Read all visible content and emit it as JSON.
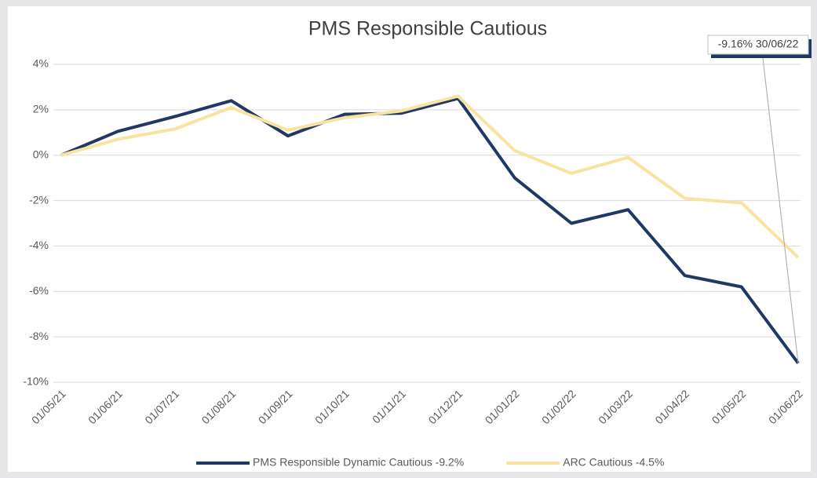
{
  "chart_data": {
    "type": "line",
    "title": "PMS Responsible Cautious",
    "categories": [
      "01/05/21",
      "01/06/21",
      "01/07/21",
      "01/08/21",
      "01/09/21",
      "01/10/21",
      "01/11/21",
      "01/12/21",
      "01/01/22",
      "01/02/22",
      "01/03/22",
      "01/04/22",
      "01/05/22",
      "01/06/22"
    ],
    "series": [
      {
        "name": "PMS Responsible Dynamic Cautious -9.2%",
        "color": "#1f3864",
        "values": [
          0,
          1.05,
          1.7,
          2.4,
          0.85,
          1.8,
          1.85,
          2.5,
          -1.0,
          -3.0,
          -2.4,
          -5.3,
          -5.8,
          -9.16
        ]
      },
      {
        "name": "ARC Cautious -4.5%",
        "color": "#f8e3a0",
        "values": [
          0,
          0.7,
          1.15,
          2.1,
          1.1,
          1.65,
          1.95,
          2.6,
          0.2,
          -0.8,
          -0.1,
          -1.9,
          -2.1,
          -4.5
        ]
      }
    ],
    "ylim": [
      -10,
      4
    ],
    "yticks": [
      {
        "value": -10,
        "label": "-10%"
      },
      {
        "value": -8,
        "label": "-8%"
      },
      {
        "value": -6,
        "label": "-6%"
      },
      {
        "value": -4,
        "label": "-4%"
      },
      {
        "value": -2,
        "label": "-2%"
      },
      {
        "value": 0,
        "label": "0%"
      },
      {
        "value": 2,
        "label": "2%"
      },
      {
        "value": 4,
        "label": "4%"
      }
    ],
    "grid": true,
    "legend": "bottom",
    "annotation": "-9.16% 30/06/22"
  }
}
